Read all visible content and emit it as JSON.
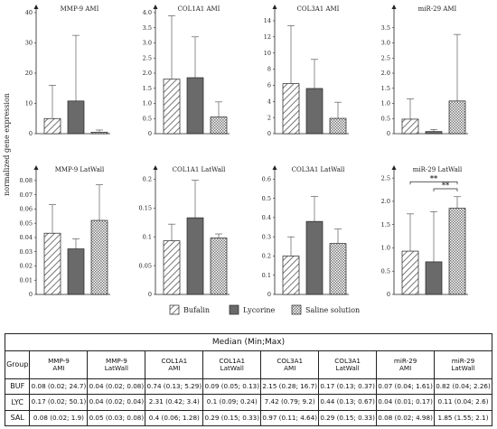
{
  "y_axis_label": "normalized gene expression",
  "legend": [
    {
      "label": "Bufalin",
      "pattern": "diagonal"
    },
    {
      "label": "Lycorine",
      "pattern": "dark"
    },
    {
      "label": "Saline solution",
      "pattern": "checker"
    }
  ],
  "colors": {
    "axis": "#222222",
    "dark_fill": "#6a6a6a",
    "hatch": "#555555"
  },
  "chart_data": [
    {
      "type": "bar",
      "title": "MMP-9 AMI",
      "categories": [
        "Bufalin",
        "Lycorine",
        "Saline solution"
      ],
      "values": [
        5,
        10.8,
        0.5
      ],
      "errors": [
        16,
        32.5,
        1.2
      ],
      "ylim": [
        0,
        40
      ],
      "yticks": [
        "0",
        "10",
        "20",
        "30",
        "40"
      ],
      "tick_values": [
        0,
        10,
        20,
        30,
        40
      ]
    },
    {
      "type": "bar",
      "title": "COL1A1 AMI",
      "categories": [
        "Bufalin",
        "Lycorine",
        "Saline solution"
      ],
      "values": [
        1.8,
        1.85,
        0.55
      ],
      "errors": [
        3.9,
        3.2,
        1.05
      ],
      "ylim": [
        0,
        4
      ],
      "yticks": [
        "0",
        "0.5",
        "1.0",
        "1.5",
        "2.0",
        "2.5",
        "3.0",
        "3.5",
        "4.0"
      ],
      "tick_values": [
        0,
        0.5,
        1,
        1.5,
        2,
        2.5,
        3,
        3.5,
        4
      ]
    },
    {
      "type": "bar",
      "title": "COL3A1 AMI",
      "categories": [
        "Bufalin",
        "Lycorine",
        "Saline solution"
      ],
      "values": [
        6.2,
        5.6,
        1.9
      ],
      "errors": [
        13.4,
        9.2,
        3.9
      ],
      "ylim": [
        0,
        15
      ],
      "yticks": [
        "0",
        "2",
        "4",
        "6",
        "8",
        "10",
        "12",
        "14"
      ],
      "tick_values": [
        0,
        2,
        4,
        6,
        8,
        10,
        12,
        14
      ]
    },
    {
      "type": "bar",
      "title": "miR-29 AMI",
      "categories": [
        "Bufalin",
        "Lycorine",
        "Saline solution"
      ],
      "values": [
        0.48,
        0.07,
        1.08
      ],
      "errors": [
        1.15,
        0.14,
        3.28
      ],
      "ylim": [
        0,
        4
      ],
      "yticks": [
        "0",
        "0.5",
        "1.0",
        "1.5",
        "2.0",
        "2.5",
        "3.0",
        "3.5"
      ],
      "tick_values": [
        0,
        0.5,
        1,
        1.5,
        2,
        2.5,
        3,
        3.5
      ]
    },
    {
      "type": "bar",
      "title": "MMP-9 LatWall",
      "categories": [
        "Bufalin",
        "Lycorine",
        "Saline solution"
      ],
      "values": [
        0.043,
        0.032,
        0.052
      ],
      "errors": [
        0.063,
        0.039,
        0.077
      ],
      "ylim": [
        0,
        0.085
      ],
      "yticks": [
        "0",
        "0.01",
        "0.02",
        "0.03",
        "0.04",
        "0.05",
        "0.06",
        "0.07",
        "0.08"
      ],
      "tick_values": [
        0,
        0.01,
        0.02,
        0.03,
        0.04,
        0.05,
        0.06,
        0.07,
        0.08
      ]
    },
    {
      "type": "bar",
      "title": "COL1A1 LatWall",
      "categories": [
        "Bufalin",
        "Lycorine",
        "Saline solution"
      ],
      "values": [
        0.093,
        0.133,
        0.098
      ],
      "errors": [
        0.122,
        0.198,
        0.105
      ],
      "ylim": [
        0,
        0.21
      ],
      "yticks": [
        "0",
        "0.05",
        "0.1",
        "0.15",
        "0.2"
      ],
      "tick_values": [
        0,
        0.05,
        0.1,
        0.15,
        0.2
      ]
    },
    {
      "type": "bar",
      "title": "COL3A1 LatWall",
      "categories": [
        "Bufalin",
        "Lycorine",
        "Saline solution"
      ],
      "values": [
        0.2,
        0.38,
        0.265
      ],
      "errors": [
        0.3,
        0.51,
        0.34
      ],
      "ylim": [
        0,
        0.63
      ],
      "yticks": [
        "0",
        "0.1",
        "0.2",
        "0.3",
        "0.4",
        "0.5",
        "0.6"
      ],
      "tick_values": [
        0,
        0.1,
        0.2,
        0.3,
        0.4,
        0.5,
        0.6
      ]
    },
    {
      "type": "bar",
      "title": "miR-29 LatWall",
      "categories": [
        "Bufalin",
        "Lycorine",
        "Saline solution"
      ],
      "values": [
        0.93,
        0.7,
        1.85
      ],
      "errors": [
        1.73,
        1.78,
        2.1
      ],
      "ylim": [
        0,
        2.6
      ],
      "yticks": [
        "0",
        "0.5",
        "1.0",
        "1.5",
        "2.0",
        "2.5"
      ],
      "tick_values": [
        0,
        0.5,
        1,
        1.5,
        2,
        2.5
      ],
      "significance": [
        {
          "from": 0,
          "to": 2,
          "label": "**",
          "y": 2.42
        },
        {
          "from": 1,
          "to": 2,
          "label": "**",
          "y": 2.27
        }
      ]
    }
  ],
  "table": {
    "caption": "Median (Min;Max)",
    "group_header": "Group",
    "columns": [
      [
        "MMP-9",
        "AMI"
      ],
      [
        "MMP-9",
        "LatWall"
      ],
      [
        "COL1A1",
        "AMI"
      ],
      [
        "COL1A1",
        "LatWall"
      ],
      [
        "COL3A1",
        "AMI"
      ],
      [
        "COL3A1",
        "LatWall"
      ],
      [
        "miR-29",
        "AMI"
      ],
      [
        "miR-29",
        "LatWall"
      ]
    ],
    "rows": [
      {
        "group": "BUF",
        "cells": [
          "0.08 (0.02; 24.7)",
          "0.04 (0.02; 0.08)",
          "0.74 (0.13; 5.29)",
          "0.09 (0.05; 0.13)",
          "2.15 (0.28; 16.7)",
          "0.17 (0.13; 0.37)",
          "0.07 (0.04; 1.61)",
          "0.82 (0.04; 2.26)"
        ]
      },
      {
        "group": "LYC",
        "cells": [
          "0.17 (0.02; 50.1)",
          "0.04 (0.02; 0.04)",
          "2.31 (0.42; 3.4)",
          "0.1 (0.09; 0.24)",
          "7.42 (0.79; 9.2)",
          "0.44 (0.13; 0.67)",
          "0.04 (0.01; 0.17)",
          "0.11 (0.04; 2.6)"
        ]
      },
      {
        "group": "SAL",
        "cells": [
          "0.08 (0.02; 1.9)",
          "0.05 (0.03; 0.08)",
          "0.4 (0.06; 1.28)",
          "0.29 (0.15; 0.33)",
          "0.97 (0.11; 4.64)",
          "0.29 (0.15; 0.33)",
          "0.08 (0.02; 4.98)",
          "1.85 (1.55; 2.1)"
        ]
      }
    ]
  }
}
